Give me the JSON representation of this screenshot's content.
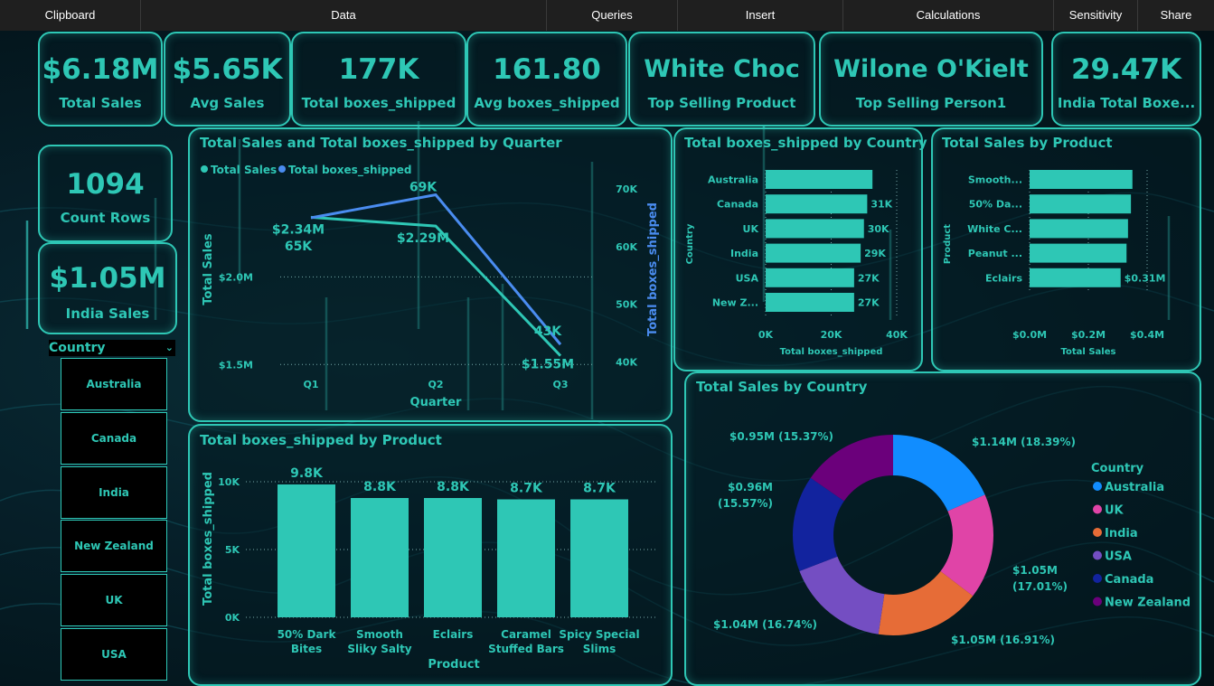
{
  "ribbon": {
    "tabs": [
      "Clipboard",
      "Data",
      "Queries",
      "Insert",
      "Calculations",
      "Sensitivity",
      "Share"
    ]
  },
  "kpis": [
    {
      "value": "$6.18M",
      "label": "Total Sales"
    },
    {
      "value": "$5.65K",
      "label": "Avg Sales"
    },
    {
      "value": "177K",
      "label": "Total boxes_shipped"
    },
    {
      "value": "161.80",
      "label": "Avg boxes_shipped"
    },
    {
      "value": "White Choc",
      "label": "Top Selling Product"
    },
    {
      "value": "Wilone O'Kielt",
      "label": "Top Selling Person1"
    },
    {
      "value": "29.47K",
      "label": "India Total Boxe..."
    }
  ],
  "side_kpis": [
    {
      "value": "1094",
      "label": "Count Rows"
    },
    {
      "value": "$1.05M",
      "label": "India Sales"
    }
  ],
  "slicer": {
    "title": "Country",
    "items": [
      "Australia",
      "Canada",
      "India",
      "New Zealand",
      "UK",
      "USA"
    ]
  },
  "colors": {
    "accent": "#2ec7b5",
    "line_sales": "#2ec7b5",
    "line_boxes": "#4a8cf0"
  },
  "chart_data": [
    {
      "type": "line",
      "title": "Total Sales and Total boxes_shipped by Quarter",
      "xlabel": "Quarter",
      "ylabel": "Total Sales",
      "y2label": "Total boxes_shipped",
      "categories": [
        "Q1",
        "Q2",
        "Q3"
      ],
      "legend": [
        "Total Sales",
        "Total boxes_shipped"
      ],
      "series": [
        {
          "name": "Total Sales",
          "values": [
            2.34,
            2.29,
            1.55
          ],
          "labels": [
            "$2.34M",
            "$2.29M",
            "$1.55M"
          ]
        },
        {
          "name": "Total boxes_shipped",
          "values": [
            65,
            69,
            43
          ],
          "labels": [
            "65K",
            "69K",
            "43K"
          ]
        }
      ],
      "y_ticks": [
        "$1.5M",
        "$2.0M"
      ],
      "y_tick_values": [
        1.5,
        2.0
      ],
      "ylim": [
        1.45,
        2.6
      ],
      "y2_ticks": [
        "40K",
        "50K",
        "60K",
        "70K"
      ],
      "y2_tick_values": [
        40,
        50,
        60,
        70
      ],
      "y2lim": [
        38,
        73
      ]
    },
    {
      "type": "bar",
      "title": "Total boxes_shipped by Country",
      "xlabel": "Total boxes_shipped",
      "ylabel": "Country",
      "categories": [
        "Australia",
        "Canada",
        "UK",
        "India",
        "USA",
        "New Z..."
      ],
      "values": [
        32.6,
        31,
        30,
        29,
        27,
        27
      ],
      "value_labels": [
        "",
        "31K",
        "30K",
        "29K",
        "27K",
        "27K"
      ],
      "x_ticks": [
        "0K",
        "20K",
        "40K"
      ],
      "x_tick_values": [
        0,
        20,
        40
      ],
      "xlim": [
        0,
        40
      ]
    },
    {
      "type": "bar",
      "title": "Total Sales by Product",
      "xlabel": "Total Sales",
      "ylabel": "Product",
      "categories": [
        "Smooth...",
        "50% Da...",
        "White C...",
        "Peanut ...",
        "Eclairs"
      ],
      "values": [
        0.35,
        0.345,
        0.335,
        0.33,
        0.31
      ],
      "value_labels": [
        "",
        "",
        "",
        "",
        "$0.31M"
      ],
      "x_ticks": [
        "$0.0M",
        "$0.2M",
        "$0.4M"
      ],
      "x_tick_values": [
        0,
        0.2,
        0.4
      ],
      "xlim": [
        0,
        0.4
      ]
    },
    {
      "type": "bar",
      "title": "Total boxes_shipped by Product",
      "xlabel": "Product",
      "ylabel": "Total boxes_shipped",
      "categories": [
        [
          "50% Dark",
          "Bites"
        ],
        [
          "Smooth",
          "Sliky Salty"
        ],
        [
          "Eclairs"
        ],
        [
          "Caramel",
          "Stuffed Bars"
        ],
        [
          "Spicy Special",
          "Slims"
        ]
      ],
      "values": [
        9.8,
        8.8,
        8.8,
        8.7,
        8.7
      ],
      "value_labels": [
        "9.8K",
        "8.8K",
        "8.8K",
        "8.7K",
        "8.7K"
      ],
      "y_ticks": [
        "0K",
        "5K",
        "10K"
      ],
      "y_tick_values": [
        0,
        5,
        10
      ],
      "ylim": [
        0,
        10
      ]
    },
    {
      "type": "pie",
      "title": "Total Sales by Country",
      "legend_title": "Country",
      "slices": [
        {
          "name": "Australia",
          "value": 1.14,
          "label": [
            "$1.14M (18.39%)"
          ],
          "color": "#118dff"
        },
        {
          "name": "UK",
          "value": 1.05,
          "label": [
            "$1.05M",
            "(17.01%)"
          ],
          "color": "#e044a7"
        },
        {
          "name": "India",
          "value": 1.05,
          "label": [
            "$1.05M (16.91%)"
          ],
          "color": "#e66c37"
        },
        {
          "name": "USA",
          "value": 1.04,
          "label": [
            "$1.04M (16.74%)"
          ],
          "color": "#744ec2"
        },
        {
          "name": "Canada",
          "value": 0.96,
          "label": [
            "$0.96M",
            "(15.57%)"
          ],
          "color": "#12239e"
        },
        {
          "name": "New Zealand",
          "value": 0.95,
          "label": [
            "$0.95M (15.37%)"
          ],
          "color": "#6b007b"
        }
      ]
    }
  ]
}
